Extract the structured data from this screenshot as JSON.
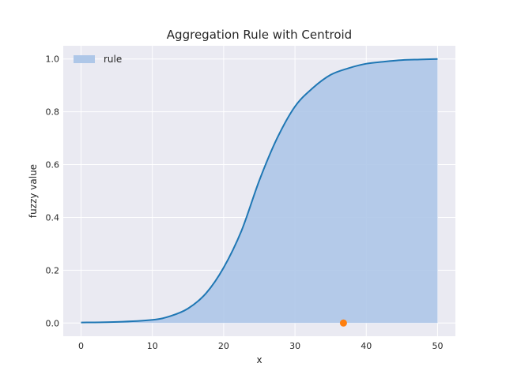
{
  "chart_data": {
    "type": "area",
    "title": "Aggregation Rule with Centroid",
    "xlabel": "x",
    "ylabel": "fuzzy value",
    "xlim": [
      -2.5,
      52.5
    ],
    "ylim": [
      -0.05,
      1.05
    ],
    "x_ticks": [
      "0",
      "10",
      "20",
      "30",
      "40",
      "50"
    ],
    "y_ticks": [
      "0.0",
      "0.2",
      "0.4",
      "0.6",
      "0.8",
      "1.0"
    ],
    "grid": true,
    "legend": {
      "placement": "top-left",
      "entries": [
        "rule"
      ]
    },
    "series": [
      {
        "name": "rule",
        "x": [
          0,
          5,
          10,
          12.5,
          15,
          17.5,
          20,
          22.5,
          25,
          27.5,
          30,
          32.5,
          35,
          37.5,
          40,
          42.5,
          45,
          47.5,
          50
        ],
        "y": [
          0.002,
          0.004,
          0.012,
          0.026,
          0.055,
          0.112,
          0.21,
          0.35,
          0.54,
          0.7,
          0.82,
          0.89,
          0.94,
          0.965,
          0.982,
          0.99,
          0.996,
          0.998,
          1.0
        ],
        "line_color": "#1f77b4",
        "fill_color": "#aec7e8"
      }
    ],
    "centroid": {
      "x": 36.8,
      "y": 0.0,
      "color": "#ff7f0e"
    }
  }
}
